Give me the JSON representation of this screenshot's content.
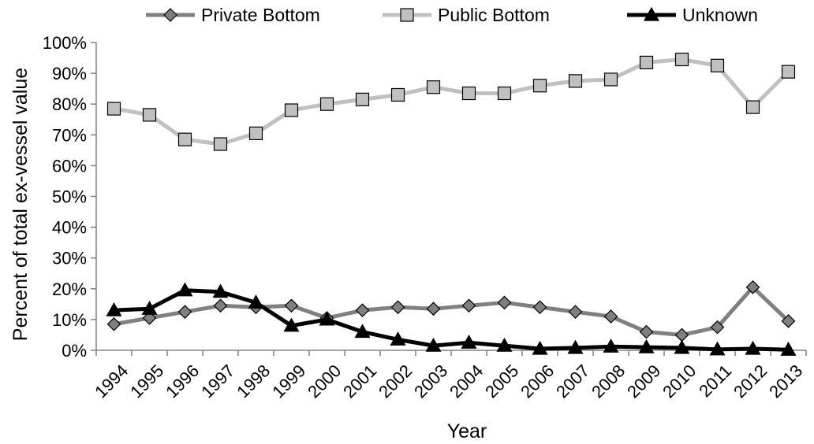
{
  "chart_data": {
    "type": "line",
    "xlabel": "Year",
    "ylabel": "Percent of total ex-vessel value",
    "ylim": [
      0,
      100
    ],
    "y_ticks": [
      "0%",
      "10%",
      "20%",
      "30%",
      "40%",
      "50%",
      "60%",
      "70%",
      "80%",
      "90%",
      "100%"
    ],
    "grid": false,
    "legend_position": "top",
    "categories": [
      "1994",
      "1995",
      "1996",
      "1997",
      "1998",
      "1999",
      "2000",
      "2001",
      "2002",
      "2003",
      "2004",
      "2005",
      "2006",
      "2007",
      "2008",
      "2009",
      "2010",
      "2011",
      "2012",
      "2013"
    ],
    "series": [
      {
        "name": "Private Bottom",
        "marker": "diamond",
        "color": "#808080",
        "values": [
          8.5,
          10.5,
          12.5,
          14.5,
          14,
          14.5,
          10.5,
          13,
          14,
          13.5,
          14.5,
          15.5,
          14,
          12.5,
          11,
          6,
          5,
          7.5,
          20.5,
          9.5
        ]
      },
      {
        "name": "Public Bottom",
        "marker": "square",
        "color": "#c0c0c0",
        "values": [
          78.5,
          76.5,
          68.5,
          67,
          70.5,
          78,
          80,
          81.5,
          83,
          85.5,
          83.5,
          83.5,
          86,
          87.5,
          88,
          93.5,
          94.5,
          92.5,
          79,
          90.5
        ]
      },
      {
        "name": "Unknown",
        "marker": "triangle",
        "color": "#000000",
        "values": [
          13,
          13.5,
          19.5,
          19,
          15.5,
          8,
          10,
          6,
          3.5,
          1.5,
          2.5,
          1.5,
          0.5,
          0.8,
          1.2,
          1,
          0.8,
          0.3,
          0.5,
          0.2
        ]
      }
    ]
  }
}
